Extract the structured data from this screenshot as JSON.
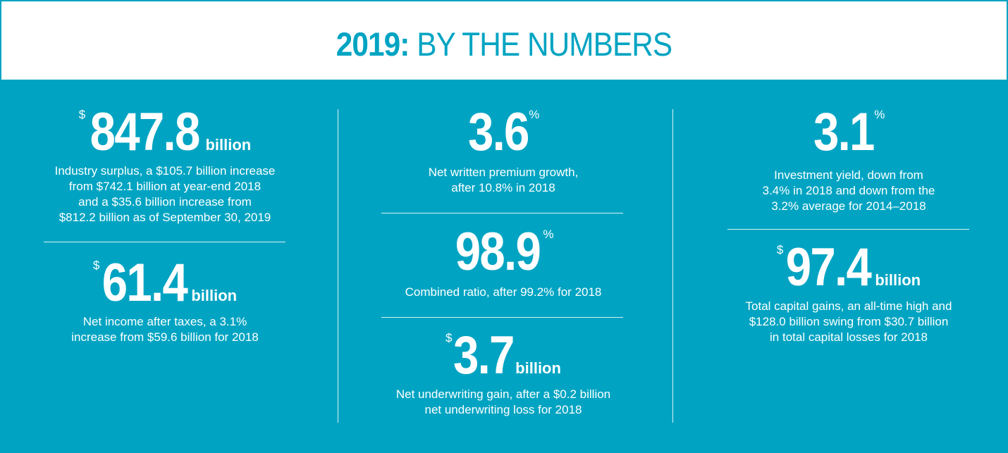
{
  "header": {
    "year": "2019:",
    "title": "BY THE NUMBERS"
  },
  "stats": {
    "surplus": {
      "prefix": "$",
      "value": "847.8",
      "unit": "billion",
      "desc_lines": [
        "Industry surplus, a $105.7 billion increase",
        "from $742.1 billion at year-end 2018",
        "and a $35.6 billion increase from",
        "$812.2 billion as of September 30, 2019"
      ]
    },
    "net_income": {
      "prefix": "$",
      "value": "61.4",
      "unit": "billion",
      "desc_lines": [
        "Net income after taxes, a 3.1%",
        "increase from $59.6 billion for 2018"
      ]
    },
    "premium_growth": {
      "value": "3.6",
      "suffix": "%",
      "desc_lines": [
        "Net written premium growth,",
        "after 10.8% in 2018"
      ]
    },
    "combined_ratio": {
      "value": "98.9",
      "suffix": "%",
      "desc_lines": [
        "Combined ratio, after 99.2% for 2018"
      ]
    },
    "underwriting_gain": {
      "prefix": "$",
      "value": "3.7",
      "unit": "billion",
      "desc_lines": [
        "Net underwriting gain, after a $0.2 billion",
        "net underwriting loss for 2018"
      ]
    },
    "investment_yield": {
      "value": "3.1",
      "suffix": "%",
      "desc_lines": [
        "Investment yield, down from",
        "3.4% in 2018 and down from the",
        "3.2% average for 2014–2018"
      ]
    },
    "capital_gains": {
      "prefix": "$",
      "value": "97.4",
      "unit": "billion",
      "desc_lines": [
        "Total capital gains, an all-time high and",
        "$128.0 billion swing from $30.7 billion",
        "in total capital losses for 2018"
      ]
    }
  },
  "colors": {
    "background": "#00a4c2",
    "header_bg": "#ffffff",
    "accent": "#00a4c2",
    "text": "#ffffff"
  }
}
